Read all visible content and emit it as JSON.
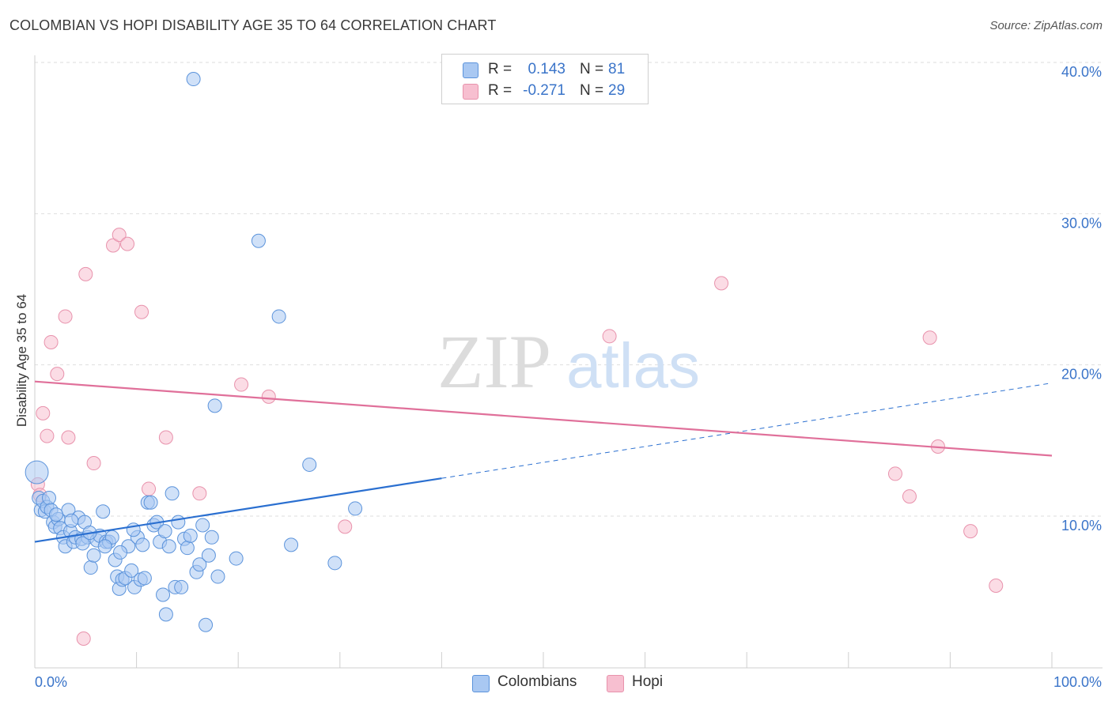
{
  "title": "COLOMBIAN VS HOPI DISABILITY AGE 35 TO 64 CORRELATION CHART",
  "source": "Source: ZipAtlas.com",
  "watermark": {
    "zip": "ZIP",
    "atlas": "atlas"
  },
  "legend": {
    "r_label": "R =",
    "n_label": "N =",
    "colombians": {
      "r": "0.143",
      "n": "81"
    },
    "hopi": {
      "r": "-0.271",
      "n": "29"
    }
  },
  "colors": {
    "colombians_fill": "#a9c8f2",
    "colombians_stroke": "#5b93db",
    "colombians_line": "#2a6fd0",
    "hopi_fill": "#f7bfd0",
    "hopi_stroke": "#e892ac",
    "hopi_line": "#e0709a",
    "tick_text": "#3a74c9"
  },
  "chart_data": {
    "type": "scatter",
    "title": "COLOMBIAN VS HOPI DISABILITY AGE 35 TO 64 CORRELATION CHART",
    "xlabel": "",
    "ylabel": "Disability Age 35 to 64",
    "xlim": [
      0,
      100
    ],
    "ylim": [
      0,
      41
    ],
    "x_tick_labels": [
      "0.0%",
      "100.0%"
    ],
    "y_ticks": [
      10,
      20,
      30,
      40
    ],
    "y_tick_labels": [
      "10.0%",
      "20.0%",
      "30.0%",
      "40.0%"
    ],
    "grid": true,
    "legend_position": "top-center",
    "series": [
      {
        "name": "Colombians",
        "r": 0.143,
        "n": 81,
        "trend": {
          "x0": 0,
          "y0": 8.3,
          "x1": 40,
          "y1": 12.5,
          "dashed_to": 100,
          "dashed_y": 18.8
        },
        "points": [
          [
            0.2,
            12.9,
            1.7
          ],
          [
            0.4,
            11.2,
            1
          ],
          [
            0.6,
            10.4,
            1
          ],
          [
            0.8,
            11.0,
            1
          ],
          [
            1.0,
            10.3,
            1
          ],
          [
            1.2,
            10.6,
            1
          ],
          [
            1.4,
            11.2,
            1
          ],
          [
            1.6,
            10.4,
            1
          ],
          [
            1.8,
            9.6,
            1
          ],
          [
            2.0,
            9.3,
            1
          ],
          [
            2.3,
            9.8,
            1
          ],
          [
            2.5,
            9.2,
            1
          ],
          [
            2.8,
            8.6,
            1
          ],
          [
            3.0,
            8.0,
            1
          ],
          [
            3.3,
            10.4,
            1
          ],
          [
            3.5,
            9.0,
            1
          ],
          [
            3.8,
            8.3,
            1
          ],
          [
            4.0,
            8.6,
            1
          ],
          [
            4.3,
            9.9,
            1
          ],
          [
            4.6,
            8.5,
            1
          ],
          [
            4.9,
            9.6,
            1
          ],
          [
            5.2,
            8.6,
            1
          ],
          [
            5.5,
            6.6,
            1
          ],
          [
            5.8,
            7.4,
            1
          ],
          [
            6.1,
            8.4,
            1
          ],
          [
            6.4,
            8.7,
            1
          ],
          [
            6.7,
            10.3,
            1
          ],
          [
            7.0,
            8.3,
            1
          ],
          [
            7.3,
            8.3,
            1
          ],
          [
            7.6,
            8.6,
            1
          ],
          [
            7.9,
            7.1,
            1
          ],
          [
            8.1,
            6.0,
            1
          ],
          [
            8.3,
            5.2,
            1
          ],
          [
            8.6,
            5.8,
            1
          ],
          [
            8.9,
            5.9,
            1
          ],
          [
            9.2,
            8.0,
            1
          ],
          [
            9.5,
            6.4,
            1
          ],
          [
            9.8,
            5.3,
            1
          ],
          [
            10.1,
            8.6,
            1
          ],
          [
            10.4,
            5.8,
            1
          ],
          [
            10.8,
            5.9,
            1
          ],
          [
            11.1,
            10.9,
            1
          ],
          [
            11.4,
            10.9,
            1
          ],
          [
            11.7,
            9.4,
            1
          ],
          [
            12.0,
            9.6,
            1
          ],
          [
            12.3,
            8.3,
            1
          ],
          [
            12.6,
            4.8,
            1
          ],
          [
            12.9,
            3.5,
            1
          ],
          [
            13.2,
            8.0,
            1
          ],
          [
            13.5,
            11.5,
            1
          ],
          [
            13.8,
            5.3,
            1
          ],
          [
            14.1,
            9.6,
            1
          ],
          [
            14.4,
            5.3,
            1
          ],
          [
            14.7,
            8.5,
            1
          ],
          [
            15.0,
            7.9,
            1
          ],
          [
            15.3,
            8.7,
            1
          ],
          [
            15.6,
            38.9,
            1
          ],
          [
            15.9,
            6.3,
            1
          ],
          [
            16.2,
            6.8,
            1
          ],
          [
            16.5,
            9.4,
            1
          ],
          [
            16.8,
            2.8,
            1
          ],
          [
            17.1,
            7.4,
            1
          ],
          [
            17.4,
            8.6,
            1
          ],
          [
            17.7,
            17.3,
            1
          ],
          [
            18.0,
            6.0,
            1
          ],
          [
            19.8,
            7.2,
            1
          ],
          [
            22.0,
            28.2,
            1
          ],
          [
            24.0,
            23.2,
            1
          ],
          [
            25.2,
            8.1,
            1
          ],
          [
            27.0,
            13.4,
            1
          ],
          [
            29.5,
            6.9,
            1
          ],
          [
            31.5,
            10.5,
            1
          ],
          [
            4.7,
            8.2,
            1
          ],
          [
            6.9,
            8.0,
            1
          ],
          [
            9.7,
            9.1,
            1
          ],
          [
            12.8,
            9.0,
            1
          ],
          [
            2.1,
            10.1,
            1
          ],
          [
            3.6,
            9.7,
            1
          ],
          [
            5.4,
            8.9,
            1
          ],
          [
            8.4,
            7.6,
            1
          ],
          [
            10.6,
            8.1,
            1
          ]
        ]
      },
      {
        "name": "Hopi",
        "r": -0.271,
        "n": 29,
        "trend": {
          "x0": 0,
          "y0": 18.9,
          "x1": 100,
          "y1": 14.0
        },
        "points": [
          [
            0.3,
            12.1,
            1
          ],
          [
            0.5,
            11.4,
            1
          ],
          [
            0.8,
            16.8,
            1
          ],
          [
            1.2,
            15.3,
            1
          ],
          [
            1.6,
            21.5,
            1
          ],
          [
            2.2,
            19.4,
            1
          ],
          [
            3.0,
            23.2,
            1
          ],
          [
            3.3,
            15.2,
            1
          ],
          [
            4.8,
            1.9,
            1
          ],
          [
            5.0,
            26.0,
            1
          ],
          [
            5.8,
            13.5,
            1
          ],
          [
            7.7,
            27.9,
            1
          ],
          [
            8.3,
            28.6,
            1
          ],
          [
            9.1,
            28.0,
            1
          ],
          [
            10.5,
            23.5,
            1
          ],
          [
            11.2,
            11.8,
            1
          ],
          [
            12.9,
            15.2,
            1
          ],
          [
            16.2,
            11.5,
            1
          ],
          [
            20.3,
            18.7,
            1
          ],
          [
            23.0,
            17.9,
            1
          ],
          [
            30.5,
            9.3,
            1
          ],
          [
            56.5,
            21.9,
            1
          ],
          [
            67.5,
            25.4,
            1
          ],
          [
            84.6,
            12.8,
            1
          ],
          [
            86.0,
            11.3,
            1
          ],
          [
            88.0,
            21.8,
            1
          ],
          [
            88.8,
            14.6,
            1
          ],
          [
            92.0,
            9.0,
            1
          ],
          [
            94.5,
            5.4,
            1
          ]
        ]
      }
    ],
    "extra_points_note": ""
  }
}
